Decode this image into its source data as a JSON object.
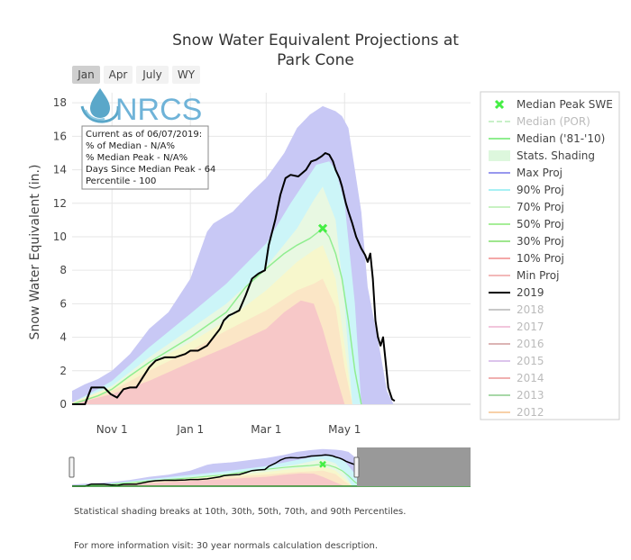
{
  "chart_data": {
    "type": "line",
    "title_line1": "Snow Water Equivalent Projections at",
    "title_line2": "Park Cone",
    "ylabel": "Snow Water Equivalent (in.)",
    "xlabel": "",
    "ylim": [
      0,
      18.6
    ],
    "xlim": [
      0,
      310
    ],
    "x_units": "days since Oct 1",
    "yticks": [
      0,
      2,
      4,
      6,
      8,
      10,
      12,
      14,
      16,
      18
    ],
    "xticks": [
      {
        "label": "Nov  1",
        "day": 31
      },
      {
        "label": "Jan  1",
        "day": 92
      },
      {
        "label": "Mar  1",
        "day": 151
      },
      {
        "label": "May  1",
        "day": 212
      }
    ],
    "grid": true,
    "legend_position": "right",
    "range_buttons": [
      "Jan",
      "Apr",
      "July",
      "WY"
    ],
    "active_button": "Jan",
    "logo_text": "NRCS",
    "info_box": [
      "Current as of 06/07/2019:",
      "% of Median - N/A%",
      "% Median Peak - N/A%",
      "Days Since Median Peak - 64",
      "Percentile - 100"
    ],
    "median_peak": {
      "day": 195,
      "value": 10.5,
      "name": "Median Peak SWE"
    },
    "colors": {
      "max_band": "#c8c8f5",
      "p90_band": "#ccf5f8",
      "p70_band": "#e8f8e2",
      "p50_band": "#f7f7cc",
      "p30_band": "#fbe6c6",
      "p10_band": "#f7c8c8",
      "median": "#90ee90",
      "wy2019": "#000000",
      "peak_marker": "#44ee44",
      "navigator_mask": "#999999"
    },
    "series": [
      {
        "name": "Max Proj",
        "type": "band",
        "x": [
          0,
          10,
          20,
          31,
          45,
          60,
          75,
          92,
          105,
          110,
          125,
          140,
          151,
          165,
          175,
          185,
          195,
          205,
          210,
          215,
          220,
          225,
          230,
          240,
          245,
          250
        ],
        "lower": [
          0,
          0,
          0,
          0,
          0,
          0,
          0,
          0,
          0,
          0,
          0,
          0,
          0,
          0,
          0,
          0,
          0,
          0,
          0,
          0,
          0,
          0,
          0,
          0,
          0,
          0
        ],
        "upper": [
          0.8,
          1.2,
          1.5,
          2.0,
          3.0,
          4.5,
          5.5,
          7.5,
          10.3,
          10.8,
          11.5,
          12.7,
          13.5,
          15.0,
          16.5,
          17.3,
          17.8,
          17.5,
          17.2,
          16.5,
          14.0,
          11.5,
          7.0,
          3.0,
          0.8,
          0
        ]
      },
      {
        "name": "90% Proj",
        "type": "band",
        "x": [
          0,
          20,
          31,
          60,
          92,
          120,
          151,
          170,
          190,
          200,
          205,
          212,
          220,
          225
        ],
        "upper": [
          0.1,
          0.9,
          1.4,
          3.4,
          5.4,
          7.2,
          9.6,
          12.0,
          14.3,
          14.5,
          14.0,
          12.0,
          6.0,
          0
        ]
      },
      {
        "name": "70% Proj",
        "type": "band",
        "x": [
          0,
          31,
          60,
          92,
          120,
          151,
          175,
          188,
          195,
          205,
          212,
          218
        ],
        "upper": [
          0.1,
          1.1,
          2.8,
          4.5,
          6.0,
          8.2,
          10.5,
          12.2,
          13.0,
          11.0,
          6.0,
          0
        ]
      },
      {
        "name": "50% Proj",
        "type": "band",
        "x": [
          0,
          31,
          60,
          92,
          120,
          151,
          175,
          188,
          195,
          205,
          212,
          218
        ],
        "upper": [
          0.1,
          1.0,
          2.4,
          3.7,
          5.0,
          6.8,
          8.5,
          9.2,
          9.5,
          7.5,
          3.5,
          0
        ]
      },
      {
        "name": "30% Proj",
        "type": "band",
        "x": [
          0,
          31,
          60,
          92,
          120,
          151,
          175,
          188,
          195,
          205,
          212,
          218
        ],
        "upper": [
          0.1,
          0.8,
          2.0,
          3.2,
          4.4,
          5.6,
          6.8,
          7.2,
          7.5,
          5.8,
          2.2,
          0
        ]
      },
      {
        "name": "10% Proj",
        "type": "band",
        "x": [
          0,
          31,
          60,
          92,
          120,
          151,
          165,
          178,
          188,
          195,
          205,
          212
        ],
        "upper": [
          0.0,
          0.6,
          1.4,
          2.5,
          3.4,
          4.5,
          5.5,
          6.2,
          6.0,
          4.5,
          1.8,
          0
        ]
      },
      {
        "name": "Median ('81-'10)",
        "type": "line",
        "x": [
          0,
          20,
          31,
          45,
          60,
          75,
          92,
          105,
          120,
          135,
          151,
          165,
          175,
          185,
          190,
          195,
          200,
          205,
          210,
          215,
          220,
          225
        ],
        "values": [
          0,
          0.5,
          0.9,
          1.7,
          2.5,
          3.2,
          4.0,
          4.7,
          5.5,
          7.0,
          8.1,
          9.0,
          9.5,
          9.9,
          10.2,
          10.5,
          10.0,
          9.0,
          7.5,
          5.0,
          2.0,
          0
        ]
      },
      {
        "name": "2019",
        "type": "line",
        "x": [
          0,
          10,
          15,
          20,
          25,
          30,
          35,
          40,
          45,
          50,
          55,
          60,
          65,
          72,
          80,
          88,
          92,
          98,
          105,
          110,
          115,
          118,
          122,
          125,
          130,
          135,
          140,
          145,
          150,
          153,
          158,
          162,
          166,
          170,
          176,
          182,
          186,
          190,
          194,
          197,
          200,
          203,
          205,
          208,
          210,
          213,
          215,
          218,
          221,
          225,
          228,
          230,
          232,
          234,
          236,
          238,
          240,
          242,
          244,
          246,
          249,
          251
        ],
        "values": [
          0,
          0,
          1.0,
          1.0,
          1.0,
          0.6,
          0.4,
          0.9,
          1.0,
          1.0,
          1.6,
          2.2,
          2.6,
          2.8,
          2.8,
          3.0,
          3.2,
          3.2,
          3.5,
          4.0,
          4.5,
          5.0,
          5.3,
          5.4,
          5.6,
          6.5,
          7.5,
          7.8,
          8.0,
          9.5,
          11.0,
          12.5,
          13.5,
          13.7,
          13.6,
          14.0,
          14.5,
          14.6,
          14.8,
          15.0,
          14.9,
          14.5,
          14.0,
          13.5,
          13.0,
          12.0,
          11.5,
          10.8,
          10.0,
          9.3,
          8.9,
          8.5,
          9.0,
          7.5,
          5.0,
          4.0,
          3.5,
          4.0,
          2.5,
          1.0,
          0.3,
          0.2
        ]
      }
    ],
    "legend": [
      {
        "name": "Median Peak SWE",
        "style": "marker",
        "color": "#44ee44",
        "dim": false
      },
      {
        "name": "Median (POR)",
        "style": "dash",
        "color": "#c8f0c8",
        "dim": true
      },
      {
        "name": "Median ('81-'10)",
        "style": "line",
        "color": "#90ee90",
        "dim": false
      },
      {
        "name": "Stats. Shading",
        "style": "box",
        "color": "#ddf7dd",
        "dim": false
      },
      {
        "name": "Max Proj",
        "style": "line",
        "color": "#9898ee",
        "dim": false
      },
      {
        "name": "90% Proj",
        "style": "line",
        "color": "#a8f0f4",
        "dim": false
      },
      {
        "name": "70% Proj",
        "style": "line",
        "color": "#c8f2c2",
        "dim": false
      },
      {
        "name": "50% Proj",
        "style": "line",
        "color": "#a6ee98",
        "dim": false
      },
      {
        "name": "30% Proj",
        "style": "line",
        "color": "#9ee68e",
        "dim": false
      },
      {
        "name": "10% Proj",
        "style": "line",
        "color": "#f4a8a8",
        "dim": false
      },
      {
        "name": "Min Proj",
        "style": "line",
        "color": "#f3b8b8",
        "dim": false
      },
      {
        "name": "2019",
        "style": "line",
        "color": "#000000",
        "dim": false
      },
      {
        "name": "2018",
        "style": "line",
        "color": "#c8c8c8",
        "dim": true
      },
      {
        "name": "2017",
        "style": "line",
        "color": "#f2c6dc",
        "dim": true
      },
      {
        "name": "2016",
        "style": "line",
        "color": "#dcb4b4",
        "dim": true
      },
      {
        "name": "2015",
        "style": "line",
        "color": "#dcc4ec",
        "dim": true
      },
      {
        "name": "2014",
        "style": "line",
        "color": "#f0b0b0",
        "dim": true
      },
      {
        "name": "2013",
        "style": "line",
        "color": "#a8d8a8",
        "dim": true
      },
      {
        "name": "2012",
        "style": "line",
        "color": "#f8d0a8",
        "dim": true
      }
    ]
  },
  "footer": {
    "note1": "Statistical shading breaks at 10th, 30th, 50th, 70th, and 90th Percentiles.",
    "note2": "For more information visit: 30 year normals calculation description."
  }
}
